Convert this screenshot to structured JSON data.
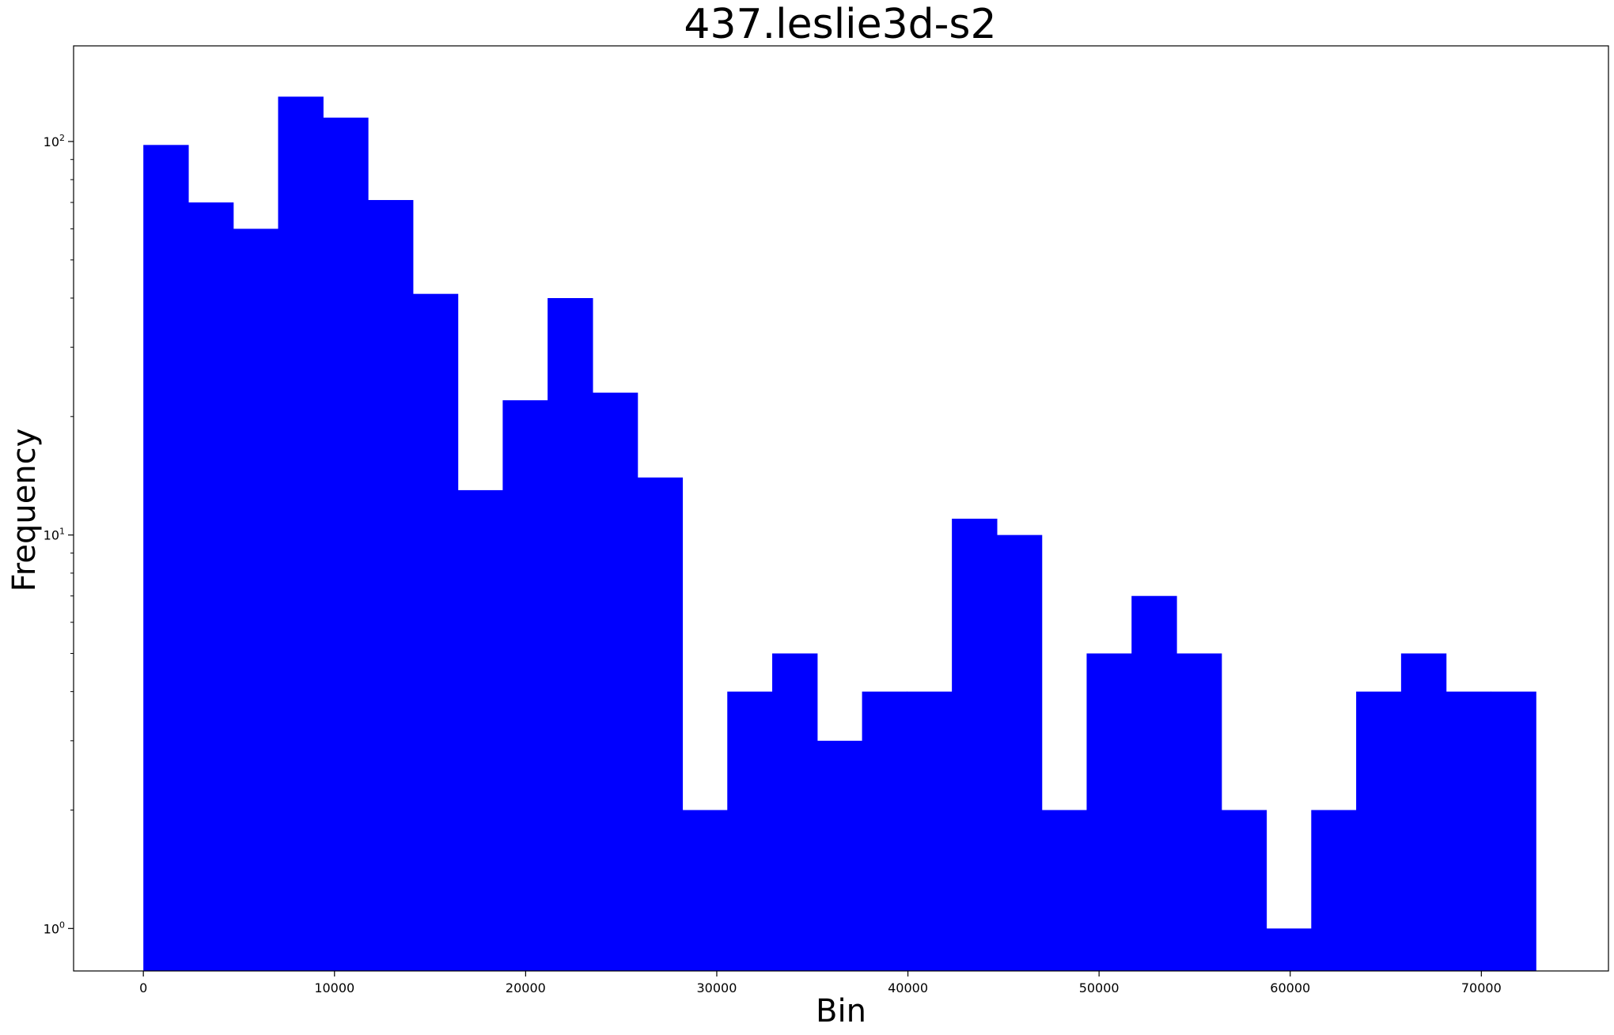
{
  "chart_data": {
    "type": "bar",
    "title": "437.leslie3d-s2",
    "xlabel": "Bin",
    "ylabel": "Frequency",
    "yscale": "log",
    "xlim": [
      -3650,
      76650
    ],
    "ylim": [
      0.78,
      175
    ],
    "bar_color": "#0000ff",
    "grid": false,
    "legend": "none",
    "x_ticks": [
      {
        "value": 0,
        "label": "0"
      },
      {
        "value": 10000,
        "label": "10000"
      },
      {
        "value": 20000,
        "label": "20000"
      },
      {
        "value": 30000,
        "label": "30000"
      },
      {
        "value": 40000,
        "label": "40000"
      },
      {
        "value": 50000,
        "label": "50000"
      },
      {
        "value": 60000,
        "label": "60000"
      },
      {
        "value": 70000,
        "label": "70000"
      }
    ],
    "y_ticks": [
      {
        "value": 1,
        "base": "10",
        "exp": "0"
      },
      {
        "value": 10,
        "base": "10",
        "exp": "1"
      },
      {
        "value": 100,
        "base": "10",
        "exp": "2"
      }
    ],
    "bin_edges": [
      0,
      2350,
      4700,
      7050,
      9400,
      11750,
      14100,
      16450,
      18800,
      21150,
      23500,
      25850,
      28200,
      30550,
      32900,
      35250,
      37600,
      39950,
      42300,
      44650,
      47000,
      49350,
      51700,
      54050,
      56400,
      58750,
      61100,
      63450,
      65800,
      68150,
      70500,
      72850
    ],
    "values": [
      98,
      70,
      60,
      130,
      115,
      71,
      41,
      13,
      22,
      40,
      23,
      14,
      2,
      4,
      5,
      3,
      4,
      4,
      11,
      10,
      2,
      5,
      7,
      5,
      2,
      1,
      2,
      4,
      5,
      4,
      4
    ]
  }
}
